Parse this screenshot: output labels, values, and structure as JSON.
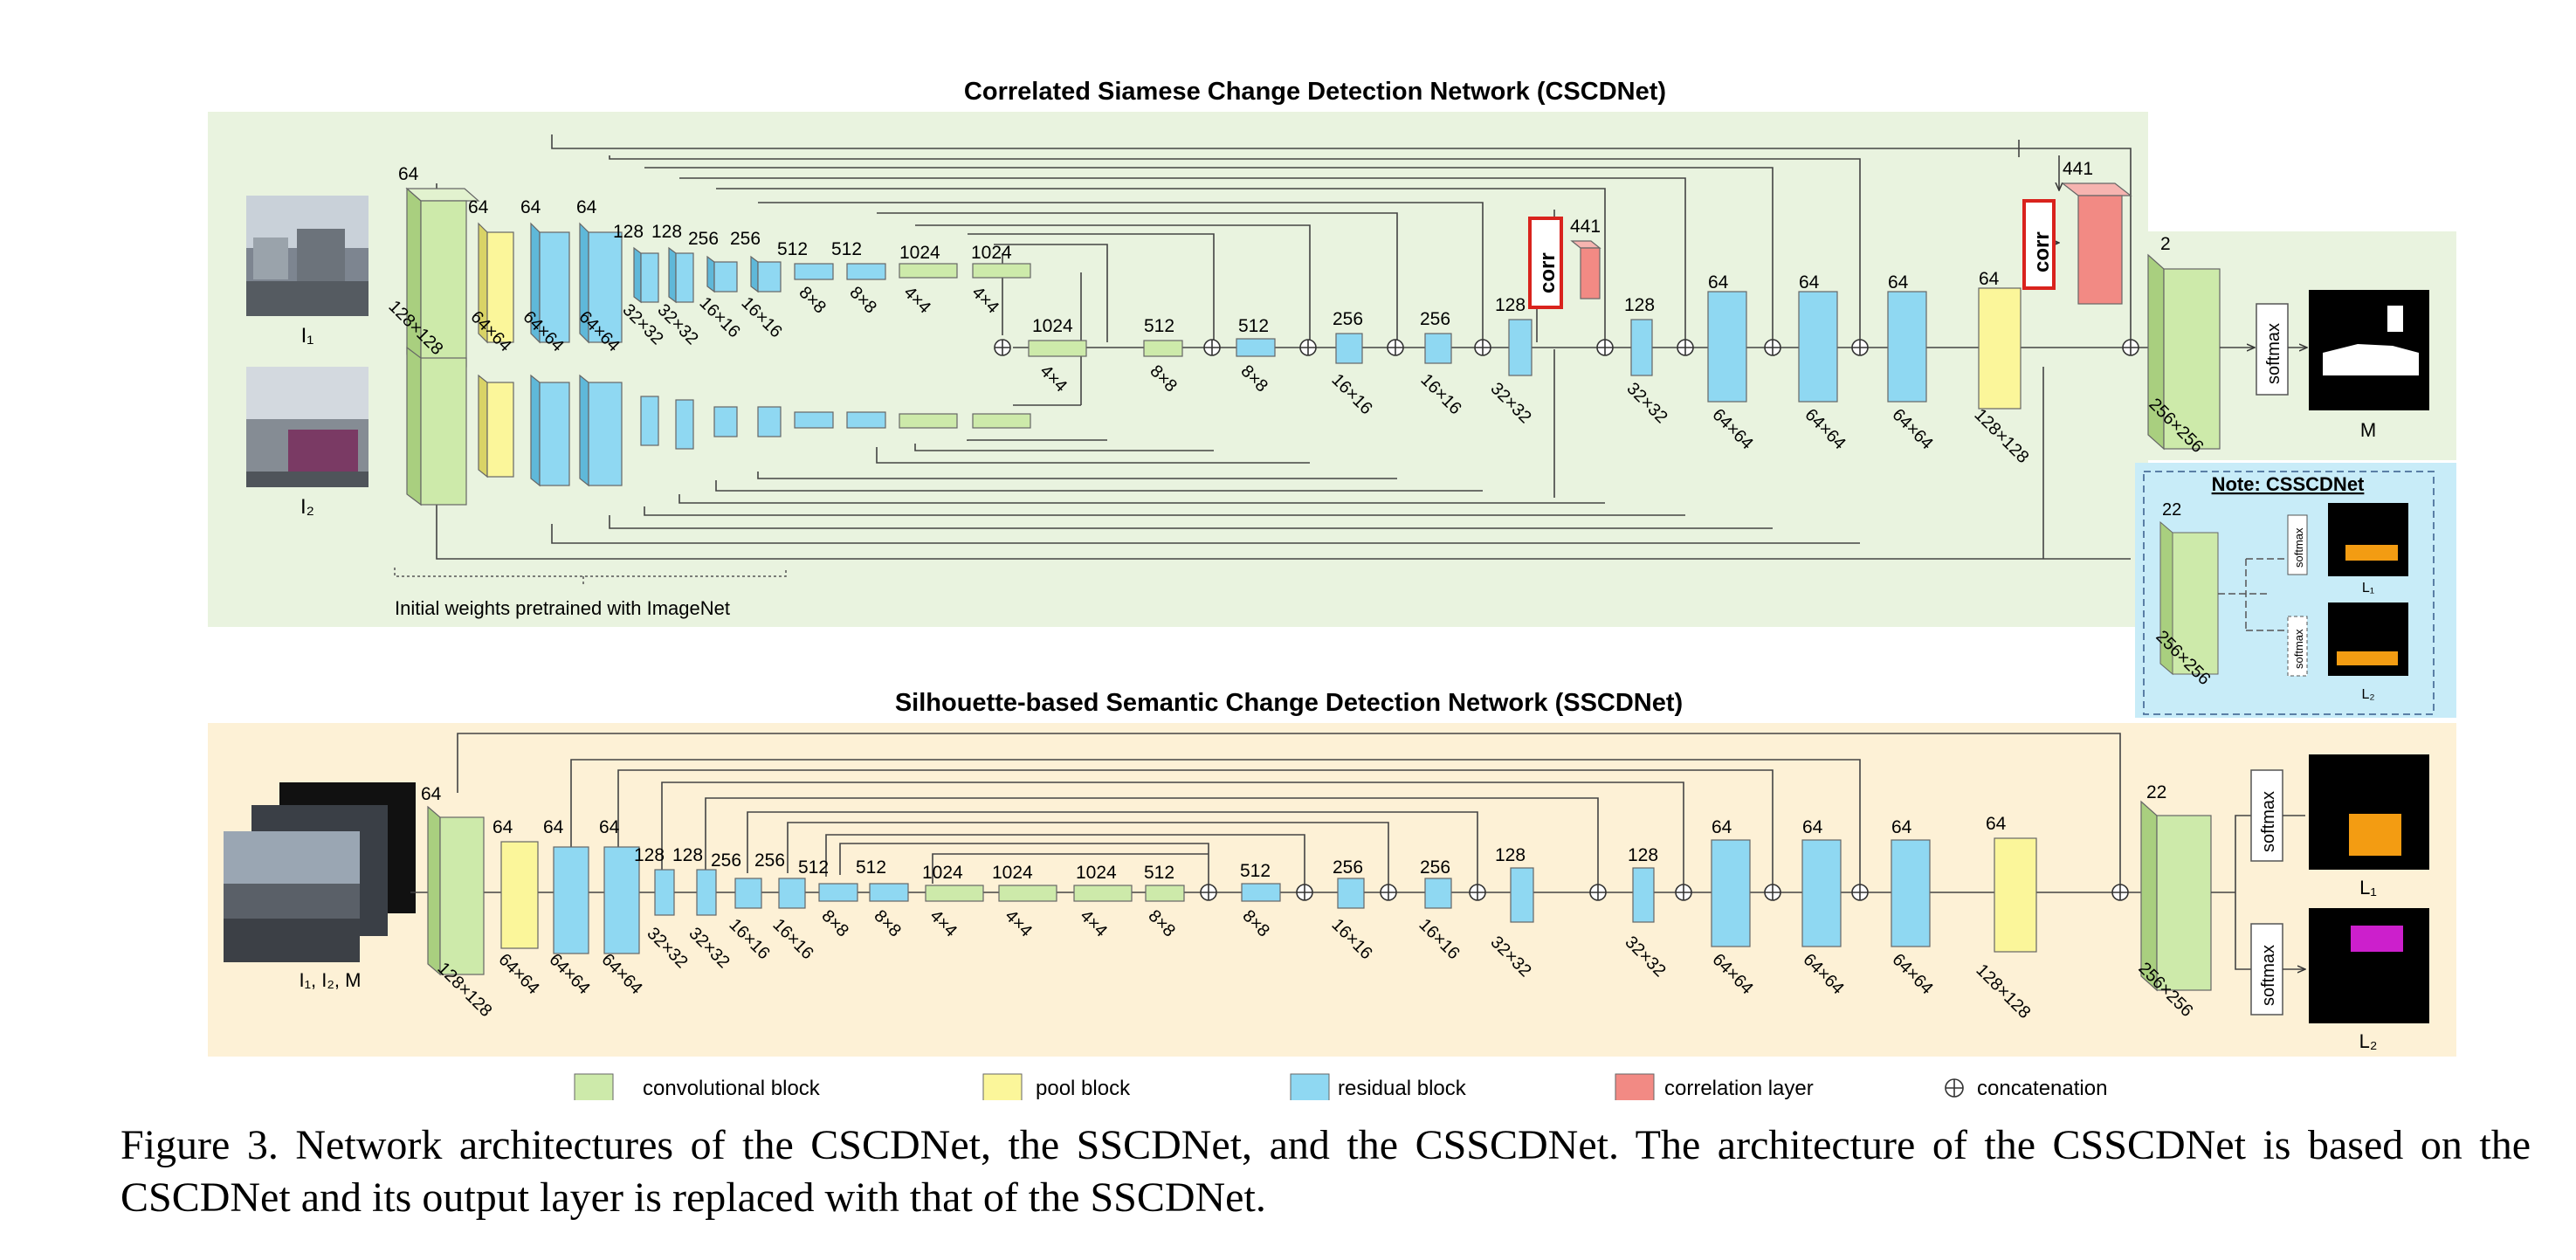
{
  "cscd": {
    "title": "Correlated Siamese Change Detection Network (CSCDNet)",
    "input_top_label": "I₁",
    "input_bottom_label": "I₂",
    "pretrain_note": "Initial weights pretrained with ImageNet",
    "corr_label": "corr",
    "softmax_label": "softmax",
    "output_label": "M",
    "enc_channels": [
      "64",
      "64",
      "64",
      "64",
      "128",
      "128",
      "256",
      "256",
      "512",
      "512",
      "1024",
      "1024"
    ],
    "enc_sizes": [
      "128×128",
      "64×64",
      "64×64",
      "64×64",
      "32×32",
      "32×32",
      "16×16",
      "16×16",
      "8×8",
      "8×8",
      "4×4",
      "4×4"
    ],
    "dec_channels": [
      "1024",
      "512",
      "512",
      "256",
      "256",
      "128",
      "441",
      "128",
      "64",
      "64",
      "64",
      "64",
      "441",
      "2"
    ],
    "dec_sizes": [
      "4×4",
      "8×8",
      "8×8",
      "16×16",
      "16×16",
      "32×32",
      "32×32",
      "64×64",
      "64×64",
      "64×64",
      "128×128",
      "256×256"
    ]
  },
  "note": {
    "title": "Note: CSSCDNet",
    "channels": "22",
    "size": "256×256",
    "softmax_label": "softmax",
    "out1": "L₁",
    "out2": "L₂"
  },
  "sscd": {
    "title": "Silhouette-based Semantic Change Detection Network (SSCDNet)",
    "input_label": "I₁, I₂, M",
    "channels": [
      "64",
      "64",
      "64",
      "64",
      "128",
      "128",
      "256",
      "256",
      "512",
      "512",
      "1024",
      "1024",
      "1024",
      "512",
      "512",
      "256",
      "256",
      "128",
      "128",
      "64",
      "64",
      "64",
      "64",
      "22"
    ],
    "sizes": [
      "128×128",
      "64×64",
      "64×64",
      "64×64",
      "32×32",
      "32×32",
      "16×16",
      "16×16",
      "8×8",
      "8×8",
      "4×4",
      "4×4",
      "4×4",
      "8×8",
      "8×8",
      "16×16",
      "16×16",
      "32×32",
      "32×32",
      "64×64",
      "64×64",
      "64×64",
      "128×128",
      "256×256"
    ],
    "softmax_label": "softmax",
    "out1": "L₁",
    "out2": "L₂"
  },
  "legend": [
    {
      "label": "convolutional block",
      "color": "#cdeaaa"
    },
    {
      "label": "pool block",
      "color": "#fbf69a"
    },
    {
      "label": "residual block",
      "color": "#8fd8f2"
    },
    {
      "label": "correlation layer",
      "color": "#f28a84"
    },
    {
      "label": "concatenation",
      "color": "#ffffff"
    }
  ],
  "colors": {
    "cscd_bg": "#e9f3df",
    "sscd_bg": "#fdf1d6",
    "note_bg": "#c8ecf8",
    "conv": "#cdeaaa",
    "pool": "#fbf69a",
    "res": "#8fd8f2",
    "corr": "#f28a84",
    "corr_outline": "#d9231d"
  },
  "caption": "Figure 3. Network architectures of the CSCDNet, the SSCDNet, and the CSSCDNet. The architecture of the CSSCDNet is based on the CSCDNet and its output layer is replaced with that of the SSCDNet."
}
